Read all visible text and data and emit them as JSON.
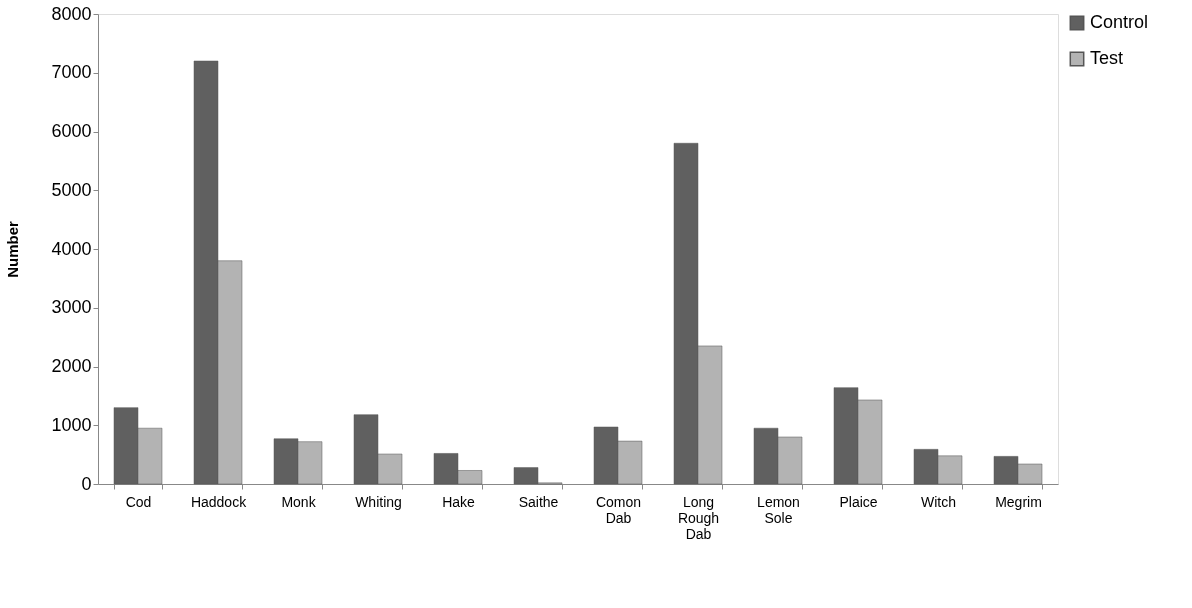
{
  "chart_data": {
    "type": "bar",
    "ylabel": "Number",
    "categories": [
      "Cod",
      "Haddock",
      "Monk",
      "Whiting",
      "Hake",
      "Saithe",
      "Comon Dab",
      "Long Rough Dab",
      "Lemon Sole",
      "Plaice",
      "Witch",
      "Megrim"
    ],
    "series": [
      {
        "name": "Control",
        "color": "#606060",
        "values": [
          1300,
          7200,
          770,
          1180,
          520,
          280,
          970,
          5800,
          950,
          1640,
          590,
          470
        ]
      },
      {
        "name": "Test",
        "color": "#b3b3b3",
        "values": [
          950,
          3800,
          720,
          510,
          230,
          20,
          730,
          2350,
          800,
          1430,
          480,
          340
        ]
      }
    ],
    "ylim": [
      0,
      8000
    ],
    "yticks": [
      0,
      1000,
      2000,
      3000,
      4000,
      5000,
      6000,
      7000,
      8000
    ],
    "grid": false,
    "legend": "top right"
  }
}
